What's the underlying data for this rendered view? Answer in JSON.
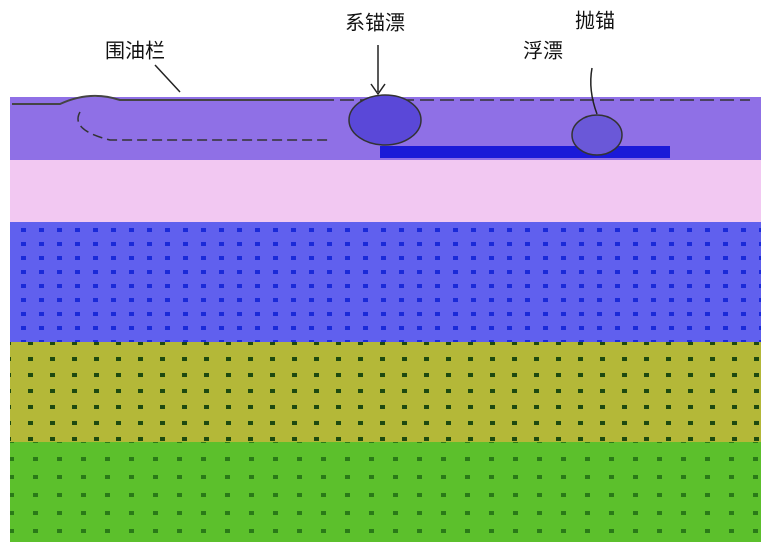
{
  "labels": {
    "boom": "围油栏",
    "mooring_buoy": "系锚漂",
    "anchor": "抛锚",
    "float": "浮漂"
  }
}
